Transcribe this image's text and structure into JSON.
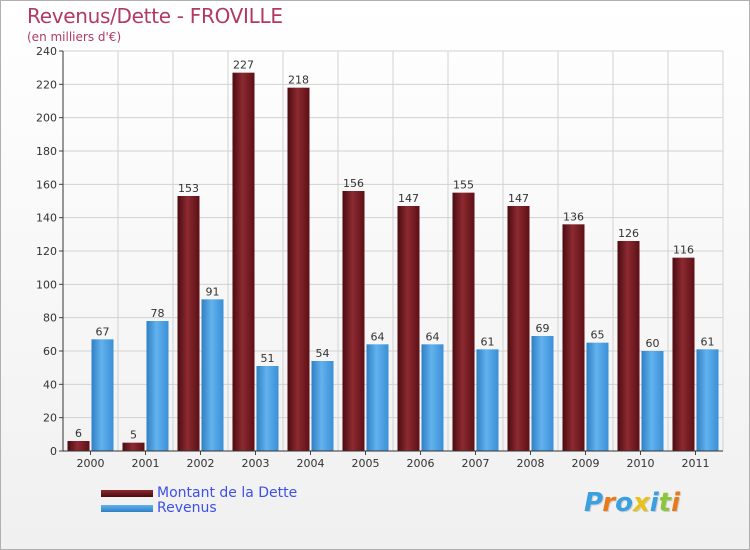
{
  "chart_data": {
    "type": "bar",
    "title": "Revenus/Dette - FROVILLE",
    "subtitle": "(en milliers d'€)",
    "categories": [
      "2000",
      "2001",
      "2002",
      "2003",
      "2004",
      "2005",
      "2006",
      "2007",
      "2008",
      "2009",
      "2010",
      "2011"
    ],
    "series": [
      {
        "name": "Montant de la Dette",
        "color": "#7a1e22",
        "values": [
          6,
          5,
          153,
          227,
          218,
          156,
          147,
          155,
          147,
          136,
          126,
          116
        ]
      },
      {
        "name": "Revenus",
        "color": "#4a9fe0",
        "values": [
          67,
          78,
          91,
          51,
          54,
          64,
          64,
          61,
          69,
          65,
          60,
          61
        ]
      }
    ],
    "ylim": [
      0,
      240
    ],
    "yticks": [
      0,
      20,
      40,
      60,
      80,
      100,
      120,
      140,
      160,
      180,
      200,
      220,
      240
    ],
    "grid": true,
    "legend_position": "bottom-left"
  },
  "logo": {
    "text": "Proxiti",
    "letters": [
      "P",
      "r",
      "o",
      "x",
      "i",
      "t",
      "i"
    ],
    "colors": [
      "#3aa0e0",
      "#e87a1c",
      "#3aa0e0",
      "#e8c21c",
      "#3aa0e0",
      "#8cc63f",
      "#e87a1c"
    ]
  }
}
